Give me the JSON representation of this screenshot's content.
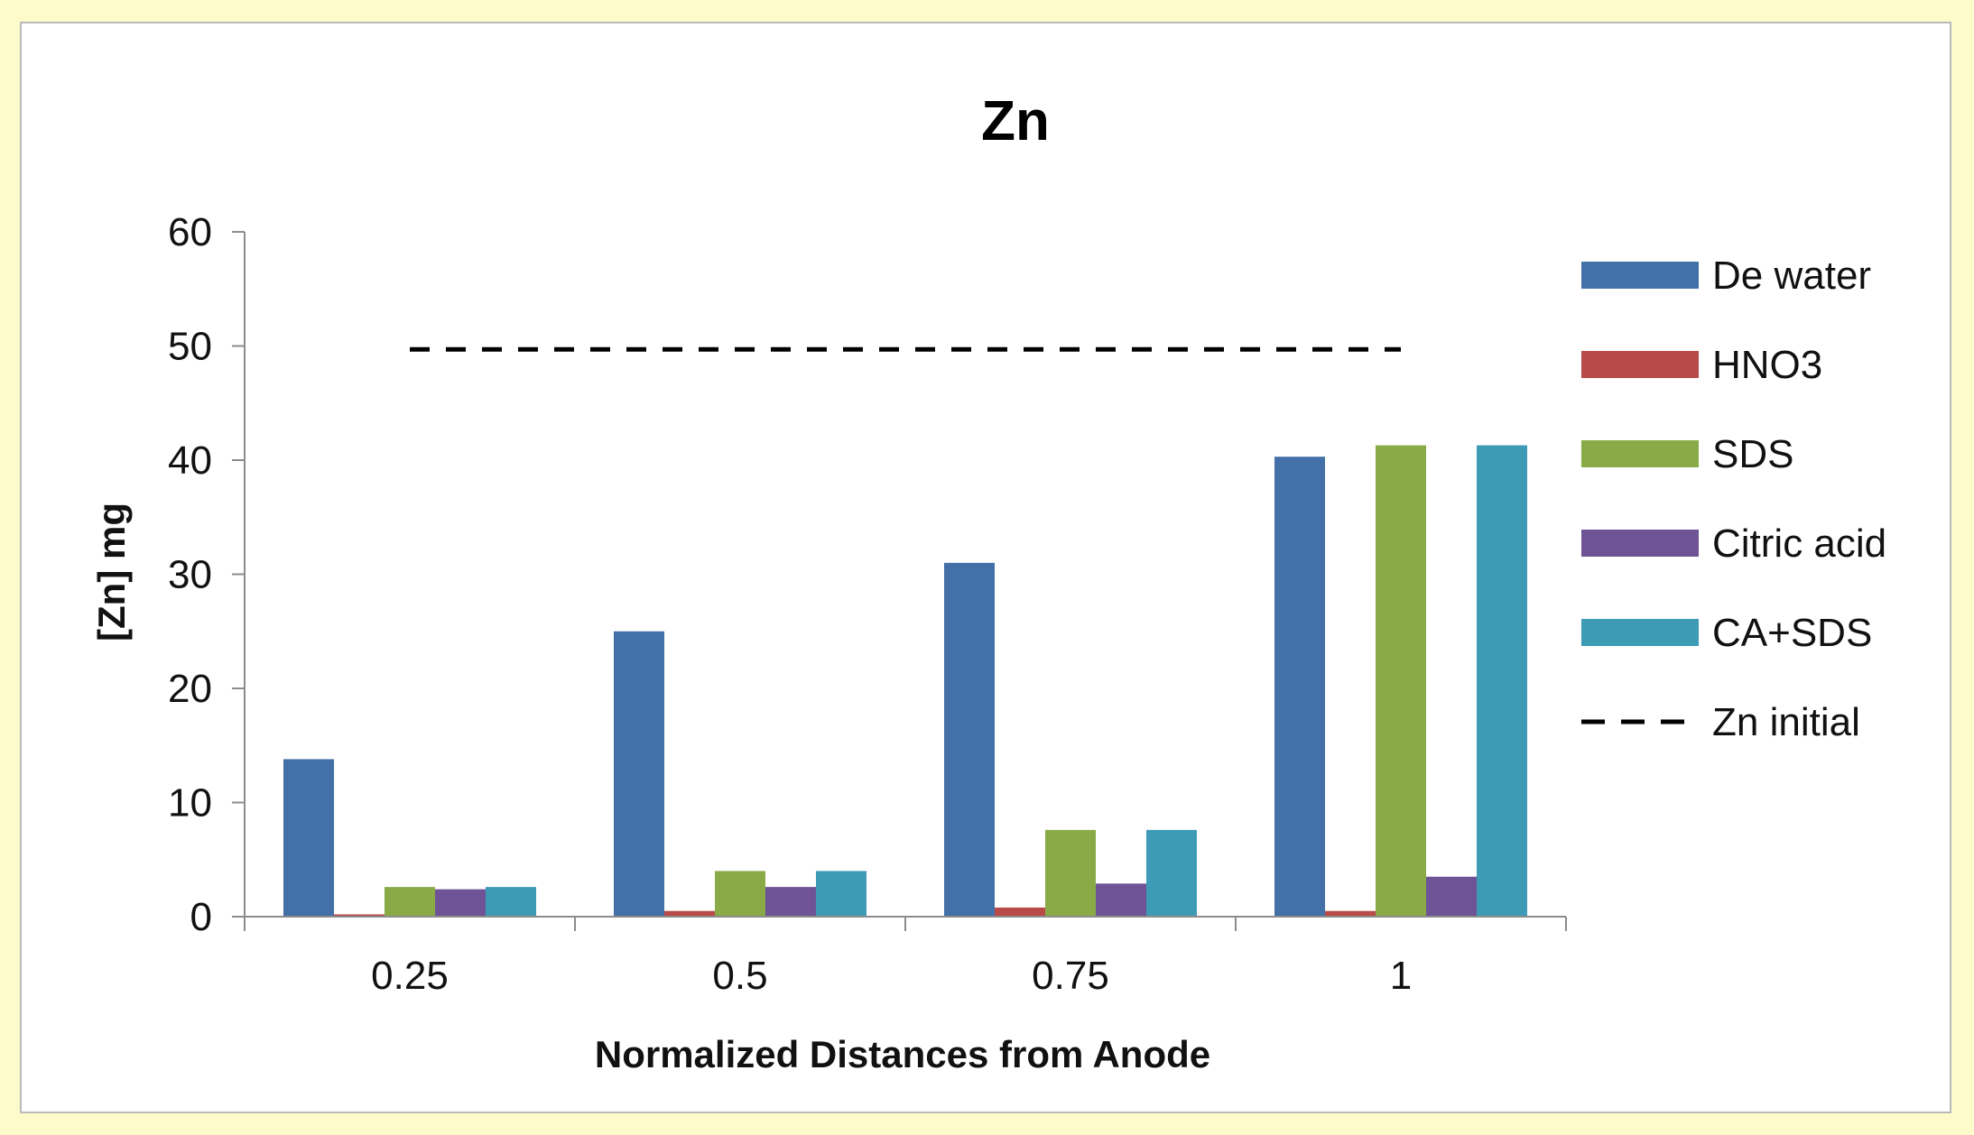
{
  "chart_data": {
    "type": "bar",
    "title": "Zn",
    "xlabel": "Normalized Distances from Anode",
    "ylabel": "[Zn] mg",
    "categories": [
      "0.25",
      "0.5",
      "0.75",
      "1"
    ],
    "ylim": [
      0,
      60
    ],
    "yticks": [
      "0",
      "10",
      "20",
      "30",
      "40",
      "50",
      "60"
    ],
    "grid": false,
    "legend_position": "right",
    "series": [
      {
        "name": "De water",
        "color": "#4470a8",
        "values": [
          13.8,
          25.0,
          31.0,
          40.3
        ]
      },
      {
        "name": "HNO3",
        "color": "#b84a48",
        "values": [
          0.2,
          0.5,
          0.8,
          0.5
        ]
      },
      {
        "name": "SDS",
        "color": "#8aaa48",
        "values": [
          2.6,
          4.0,
          7.6,
          41.3
        ]
      },
      {
        "name": "Citric acid",
        "color": "#6e5496",
        "values": [
          2.4,
          2.6,
          2.9,
          3.5
        ]
      },
      {
        "name": "CA+SDS",
        "color": "#3e9bb6",
        "values": [
          2.6,
          4.0,
          7.6,
          41.3
        ]
      }
    ],
    "reference_line": {
      "name": "Zn initial",
      "value": 49.7,
      "style": "dashed",
      "color": "#000000"
    }
  }
}
